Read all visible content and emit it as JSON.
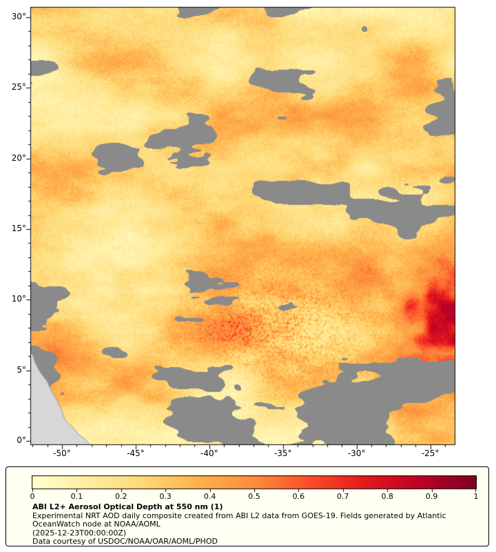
{
  "axes": {
    "lat": {
      "min": -0.29,
      "max": 30.73,
      "tick_values": [
        0,
        5,
        10,
        15,
        20,
        25,
        30
      ],
      "tick_labels": [
        "0°",
        "5°",
        "10°",
        "15°",
        "20°",
        "25°",
        "30°"
      ]
    },
    "lon": {
      "min": -52.15,
      "max": -23.3,
      "tick_values": [
        -50,
        -45,
        -40,
        -35,
        -30,
        -25
      ],
      "tick_labels": [
        "-50°",
        "-45°",
        "-40°",
        "-35°",
        "-30°",
        "-25°"
      ]
    }
  },
  "colorbar": {
    "min": 0,
    "max": 1,
    "tick_values": [
      0,
      0.1,
      0.2,
      0.3,
      0.4,
      0.5,
      0.6,
      0.7,
      0.8,
      0.9,
      1
    ],
    "tick_labels": [
      "0",
      "0.1",
      "0.2",
      "0.3",
      "0.4",
      "0.5",
      "0.6",
      "0.7",
      "0.8",
      "0.9",
      "1"
    ],
    "stops": [
      "#ffffcc",
      "#ffeda0",
      "#fed976",
      "#feb24c",
      "#fd8d3c",
      "#fc4e2a",
      "#e31a1c",
      "#bd0026",
      "#800026"
    ]
  },
  "legend": {
    "title": "ABI L2+ Aerosol Optical Depth at 550 nm (1)",
    "description_lines": [
      "Experimental NRT AOD daily composite created from ABI L2 data from GOES-19. Fields generated by Atlantic",
      "OceanWatch node at NOAA/AOML"
    ],
    "timestamp": "(2025-12-23T00:00:00Z)",
    "credit": "Data courtesy of USDOC/NOAA/OAR/AOML/PHOD"
  },
  "colors": {
    "missing_data": "#8a8a8a",
    "land": "#d7d7d7",
    "plot_border": "#000000",
    "legend_background": "#fffff2",
    "page_background": "#ffffff"
  },
  "chart_data": {
    "type": "heatmap",
    "title": "ABI L2+ Aerosol Optical Depth at 550 nm (1)",
    "xlim": [
      -52.15,
      -23.3
    ],
    "ylim": [
      -0.29,
      30.73
    ],
    "x_tick_labels": [
      "-50°",
      "-45°",
      "-40°",
      "-35°",
      "-30°",
      "-25°"
    ],
    "y_tick_labels": [
      "0°",
      "5°",
      "10°",
      "15°",
      "20°",
      "25°",
      "30°"
    ],
    "colorbar_range": [
      0,
      1
    ],
    "palette": "YlOrRd",
    "legend_position": "bottom",
    "notes": "Aerosol optical depth over the tropical North Atlantic; background AOD roughly 0.1-0.4, dense dust plume with AOD up to ~1 centered near 24°W 5-12°N, gray pixels = missing/cloudy data, light gray = South American coast at lower left.",
    "land_outline_lonlat": [
      [
        -52.3,
        6.5
      ],
      [
        -52.0,
        6.1
      ],
      [
        -51.8,
        5.5
      ],
      [
        -51.5,
        4.9
      ],
      [
        -51.0,
        4.2
      ],
      [
        -50.7,
        3.5
      ],
      [
        -50.3,
        2.8
      ],
      [
        -50.0,
        2.1
      ],
      [
        -49.8,
        1.5
      ],
      [
        -49.3,
        1.0
      ],
      [
        -48.9,
        0.5
      ],
      [
        -48.4,
        0.1
      ],
      [
        -48.0,
        -0.4
      ],
      [
        -52.3,
        -0.4
      ]
    ]
  }
}
